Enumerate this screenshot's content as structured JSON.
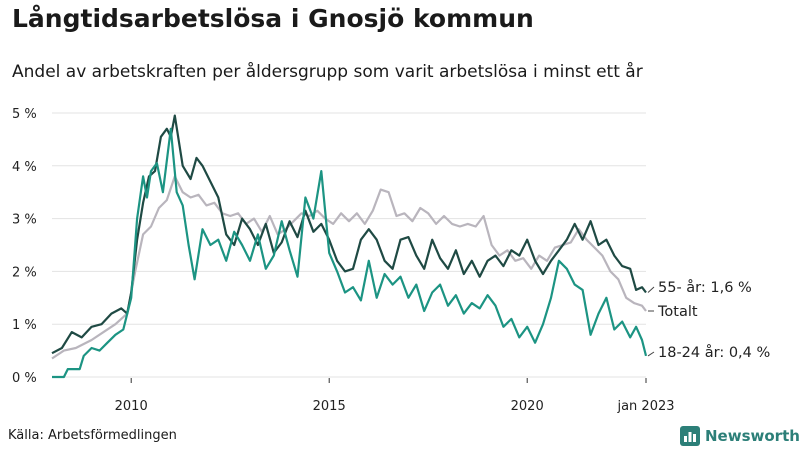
{
  "header": {
    "title": "Långtidsarbetslösa i Gnosjö kommun",
    "subtitle": "Andel av arbetskraften per åldersgrupp som varit arbetslösa i minst ett år"
  },
  "footer": {
    "source": "Källa: Arbetsförmedlingen",
    "brand": "Newsworthy",
    "brand_icon": "newsworthy-logo-icon",
    "brand_color": "#2c7f78"
  },
  "chart_data": {
    "type": "line",
    "ylim": [
      0,
      5
    ],
    "yticks": [
      0,
      1,
      2,
      3,
      4,
      5
    ],
    "ytick_labels": [
      "0 %",
      "1 %",
      "2 %",
      "3 %",
      "4 %",
      "5 %"
    ],
    "xlim": [
      2008.0,
      2023.0
    ],
    "xticks": [
      2010,
      2015,
      2020,
      2023
    ],
    "xtick_labels": [
      "2010",
      "2015",
      "2020",
      "jan 2023"
    ],
    "grid": "horizontal",
    "series": [
      {
        "name": "55- år",
        "end_label": "55- år: 1,6 %",
        "color": "#1f4a44",
        "points": [
          [
            2008.0,
            0.45
          ],
          [
            2008.25,
            0.55
          ],
          [
            2008.5,
            0.85
          ],
          [
            2008.75,
            0.75
          ],
          [
            2009.0,
            0.95
          ],
          [
            2009.25,
            1.0
          ],
          [
            2009.5,
            1.2
          ],
          [
            2009.75,
            1.3
          ],
          [
            2009.9,
            1.2
          ],
          [
            2010.0,
            1.6
          ],
          [
            2010.15,
            2.6
          ],
          [
            2010.3,
            3.3
          ],
          [
            2010.45,
            3.8
          ],
          [
            2010.6,
            3.9
          ],
          [
            2010.75,
            4.55
          ],
          [
            2010.9,
            4.7
          ],
          [
            2011.0,
            4.55
          ],
          [
            2011.1,
            4.95
          ],
          [
            2011.3,
            4.0
          ],
          [
            2011.5,
            3.75
          ],
          [
            2011.65,
            4.15
          ],
          [
            2011.8,
            4.0
          ],
          [
            2012.0,
            3.7
          ],
          [
            2012.2,
            3.4
          ],
          [
            2012.4,
            2.7
          ],
          [
            2012.6,
            2.5
          ],
          [
            2012.8,
            3.0
          ],
          [
            2013.0,
            2.8
          ],
          [
            2013.2,
            2.5
          ],
          [
            2013.4,
            2.9
          ],
          [
            2013.6,
            2.35
          ],
          [
            2013.8,
            2.55
          ],
          [
            2014.0,
            2.95
          ],
          [
            2014.2,
            2.65
          ],
          [
            2014.4,
            3.15
          ],
          [
            2014.6,
            2.75
          ],
          [
            2014.8,
            2.9
          ],
          [
            2015.0,
            2.6
          ],
          [
            2015.2,
            2.2
          ],
          [
            2015.4,
            2.0
          ],
          [
            2015.6,
            2.05
          ],
          [
            2015.8,
            2.6
          ],
          [
            2016.0,
            2.8
          ],
          [
            2016.2,
            2.6
          ],
          [
            2016.4,
            2.2
          ],
          [
            2016.6,
            2.05
          ],
          [
            2016.8,
            2.6
          ],
          [
            2017.0,
            2.65
          ],
          [
            2017.2,
            2.3
          ],
          [
            2017.4,
            2.05
          ],
          [
            2017.6,
            2.6
          ],
          [
            2017.8,
            2.25
          ],
          [
            2018.0,
            2.05
          ],
          [
            2018.2,
            2.4
          ],
          [
            2018.4,
            1.95
          ],
          [
            2018.6,
            2.2
          ],
          [
            2018.8,
            1.9
          ],
          [
            2019.0,
            2.2
          ],
          [
            2019.2,
            2.3
          ],
          [
            2019.4,
            2.1
          ],
          [
            2019.6,
            2.4
          ],
          [
            2019.8,
            2.3
          ],
          [
            2020.0,
            2.6
          ],
          [
            2020.2,
            2.2
          ],
          [
            2020.4,
            1.95
          ],
          [
            2020.6,
            2.2
          ],
          [
            2020.8,
            2.4
          ],
          [
            2021.0,
            2.6
          ],
          [
            2021.2,
            2.9
          ],
          [
            2021.4,
            2.6
          ],
          [
            2021.6,
            2.95
          ],
          [
            2021.8,
            2.5
          ],
          [
            2022.0,
            2.6
          ],
          [
            2022.2,
            2.3
          ],
          [
            2022.4,
            2.1
          ],
          [
            2022.6,
            2.05
          ],
          [
            2022.75,
            1.65
          ],
          [
            2022.9,
            1.7
          ],
          [
            2023.0,
            1.6
          ]
        ]
      },
      {
        "name": "Totalt",
        "end_label": "Totalt",
        "color": "#b9b5bd",
        "points": [
          [
            2008.0,
            0.35
          ],
          [
            2008.3,
            0.5
          ],
          [
            2008.6,
            0.55
          ],
          [
            2009.0,
            0.7
          ],
          [
            2009.3,
            0.85
          ],
          [
            2009.6,
            1.0
          ],
          [
            2009.9,
            1.2
          ],
          [
            2010.1,
            2.0
          ],
          [
            2010.3,
            2.7
          ],
          [
            2010.5,
            2.85
          ],
          [
            2010.7,
            3.2
          ],
          [
            2010.9,
            3.35
          ],
          [
            2011.1,
            3.8
          ],
          [
            2011.3,
            3.5
          ],
          [
            2011.5,
            3.4
          ],
          [
            2011.7,
            3.45
          ],
          [
            2011.9,
            3.25
          ],
          [
            2012.1,
            3.3
          ],
          [
            2012.3,
            3.1
          ],
          [
            2012.5,
            3.05
          ],
          [
            2012.7,
            3.1
          ],
          [
            2012.9,
            2.9
          ],
          [
            2013.1,
            3.0
          ],
          [
            2013.3,
            2.75
          ],
          [
            2013.5,
            3.05
          ],
          [
            2013.7,
            2.7
          ],
          [
            2013.9,
            2.8
          ],
          [
            2014.1,
            2.95
          ],
          [
            2014.3,
            3.1
          ],
          [
            2014.5,
            3.05
          ],
          [
            2014.7,
            3.15
          ],
          [
            2014.9,
            3.0
          ],
          [
            2015.1,
            2.9
          ],
          [
            2015.3,
            3.1
          ],
          [
            2015.5,
            2.95
          ],
          [
            2015.7,
            3.1
          ],
          [
            2015.9,
            2.9
          ],
          [
            2016.1,
            3.15
          ],
          [
            2016.3,
            3.55
          ],
          [
            2016.5,
            3.5
          ],
          [
            2016.7,
            3.05
          ],
          [
            2016.9,
            3.1
          ],
          [
            2017.1,
            2.95
          ],
          [
            2017.3,
            3.2
          ],
          [
            2017.5,
            3.1
          ],
          [
            2017.7,
            2.9
          ],
          [
            2017.9,
            3.05
          ],
          [
            2018.1,
            2.9
          ],
          [
            2018.3,
            2.85
          ],
          [
            2018.5,
            2.9
          ],
          [
            2018.7,
            2.85
          ],
          [
            2018.9,
            3.05
          ],
          [
            2019.1,
            2.5
          ],
          [
            2019.3,
            2.3
          ],
          [
            2019.5,
            2.4
          ],
          [
            2019.7,
            2.2
          ],
          [
            2019.9,
            2.25
          ],
          [
            2020.1,
            2.05
          ],
          [
            2020.3,
            2.3
          ],
          [
            2020.5,
            2.2
          ],
          [
            2020.7,
            2.45
          ],
          [
            2020.9,
            2.5
          ],
          [
            2021.1,
            2.55
          ],
          [
            2021.3,
            2.8
          ],
          [
            2021.5,
            2.6
          ],
          [
            2021.7,
            2.45
          ],
          [
            2021.9,
            2.3
          ],
          [
            2022.1,
            2.0
          ],
          [
            2022.3,
            1.85
          ],
          [
            2022.5,
            1.5
          ],
          [
            2022.7,
            1.4
          ],
          [
            2022.9,
            1.35
          ],
          [
            2023.0,
            1.25
          ]
        ]
      },
      {
        "name": "18-24 år",
        "end_label": "18-24 år: 0,4 %",
        "color": "#1c9483",
        "points": [
          [
            2008.0,
            0.0
          ],
          [
            2008.3,
            0.0
          ],
          [
            2008.4,
            0.15
          ],
          [
            2008.7,
            0.15
          ],
          [
            2008.8,
            0.4
          ],
          [
            2009.0,
            0.55
          ],
          [
            2009.2,
            0.5
          ],
          [
            2009.4,
            0.65
          ],
          [
            2009.6,
            0.8
          ],
          [
            2009.8,
            0.9
          ],
          [
            2010.0,
            1.5
          ],
          [
            2010.15,
            3.0
          ],
          [
            2010.3,
            3.8
          ],
          [
            2010.4,
            3.4
          ],
          [
            2010.5,
            3.9
          ],
          [
            2010.65,
            4.05
          ],
          [
            2010.8,
            3.5
          ],
          [
            2011.0,
            4.7
          ],
          [
            2011.15,
            3.5
          ],
          [
            2011.3,
            3.25
          ],
          [
            2011.45,
            2.5
          ],
          [
            2011.6,
            1.85
          ],
          [
            2011.8,
            2.8
          ],
          [
            2012.0,
            2.5
          ],
          [
            2012.2,
            2.6
          ],
          [
            2012.4,
            2.2
          ],
          [
            2012.6,
            2.75
          ],
          [
            2012.8,
            2.5
          ],
          [
            2013.0,
            2.2
          ],
          [
            2013.2,
            2.7
          ],
          [
            2013.4,
            2.05
          ],
          [
            2013.6,
            2.3
          ],
          [
            2013.8,
            2.95
          ],
          [
            2014.0,
            2.4
          ],
          [
            2014.2,
            1.9
          ],
          [
            2014.4,
            3.4
          ],
          [
            2014.6,
            3.0
          ],
          [
            2014.8,
            3.9
          ],
          [
            2015.0,
            2.35
          ],
          [
            2015.2,
            2.0
          ],
          [
            2015.4,
            1.6
          ],
          [
            2015.6,
            1.7
          ],
          [
            2015.8,
            1.45
          ],
          [
            2016.0,
            2.2
          ],
          [
            2016.2,
            1.5
          ],
          [
            2016.4,
            1.95
          ],
          [
            2016.6,
            1.75
          ],
          [
            2016.8,
            1.9
          ],
          [
            2017.0,
            1.5
          ],
          [
            2017.2,
            1.75
          ],
          [
            2017.4,
            1.25
          ],
          [
            2017.6,
            1.6
          ],
          [
            2017.8,
            1.75
          ],
          [
            2018.0,
            1.35
          ],
          [
            2018.2,
            1.55
          ],
          [
            2018.4,
            1.2
          ],
          [
            2018.6,
            1.4
          ],
          [
            2018.8,
            1.3
          ],
          [
            2019.0,
            1.55
          ],
          [
            2019.2,
            1.35
          ],
          [
            2019.4,
            0.95
          ],
          [
            2019.6,
            1.1
          ],
          [
            2019.8,
            0.75
          ],
          [
            2020.0,
            0.95
          ],
          [
            2020.2,
            0.65
          ],
          [
            2020.4,
            1.0
          ],
          [
            2020.6,
            1.5
          ],
          [
            2020.8,
            2.2
          ],
          [
            2021.0,
            2.05
          ],
          [
            2021.2,
            1.75
          ],
          [
            2021.4,
            1.65
          ],
          [
            2021.6,
            0.8
          ],
          [
            2021.8,
            1.2
          ],
          [
            2022.0,
            1.5
          ],
          [
            2022.2,
            0.9
          ],
          [
            2022.4,
            1.05
          ],
          [
            2022.6,
            0.75
          ],
          [
            2022.75,
            0.95
          ],
          [
            2022.9,
            0.7
          ],
          [
            2023.0,
            0.4
          ]
        ]
      }
    ]
  }
}
